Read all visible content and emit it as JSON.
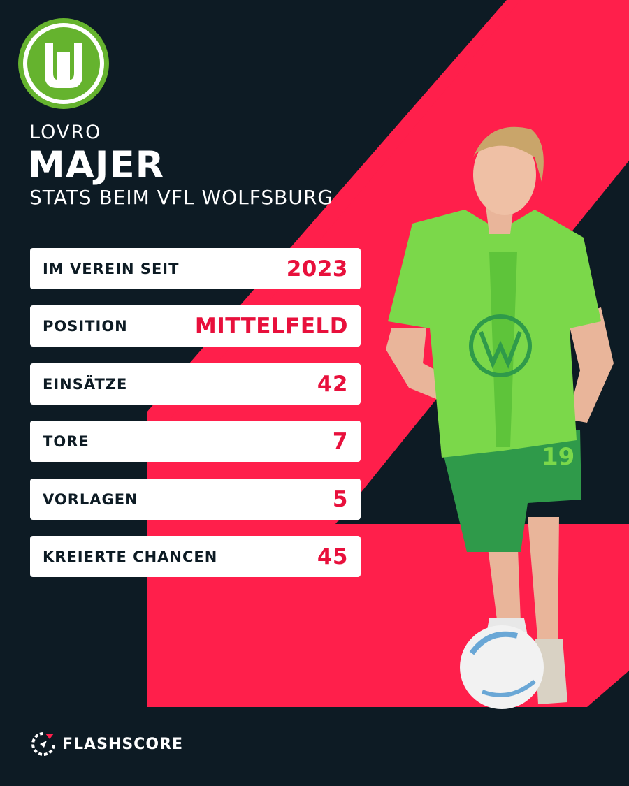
{
  "colors": {
    "background": "#0d1b24",
    "accent": "#ff1f4b",
    "value_text": "#e8103c",
    "club_green": "#65b32e",
    "jersey_green": "#7bd84a",
    "shorts_green": "#2f9a4a"
  },
  "player": {
    "first_name": "LOVRO",
    "last_name": "MAJER",
    "subtitle": "STATS BEIM VFL WOLFSBURG",
    "shirt_number": "19"
  },
  "club_logo": {
    "letter": "W",
    "icon": "vfl-wolfsburg-logo"
  },
  "stats": [
    {
      "label": "IM VEREIN SEIT",
      "value": "2023"
    },
    {
      "label": "POSITION",
      "value": "MITTELFELD"
    },
    {
      "label": "EINSÄTZE",
      "value": "42"
    },
    {
      "label": "TORE",
      "value": "7"
    },
    {
      "label": "VORLAGEN",
      "value": "5"
    },
    {
      "label": "KREIERTE CHANCEN",
      "value": "45"
    }
  ],
  "brand": {
    "name": "FLASHSCORE",
    "icon": "flashscore-logo"
  }
}
